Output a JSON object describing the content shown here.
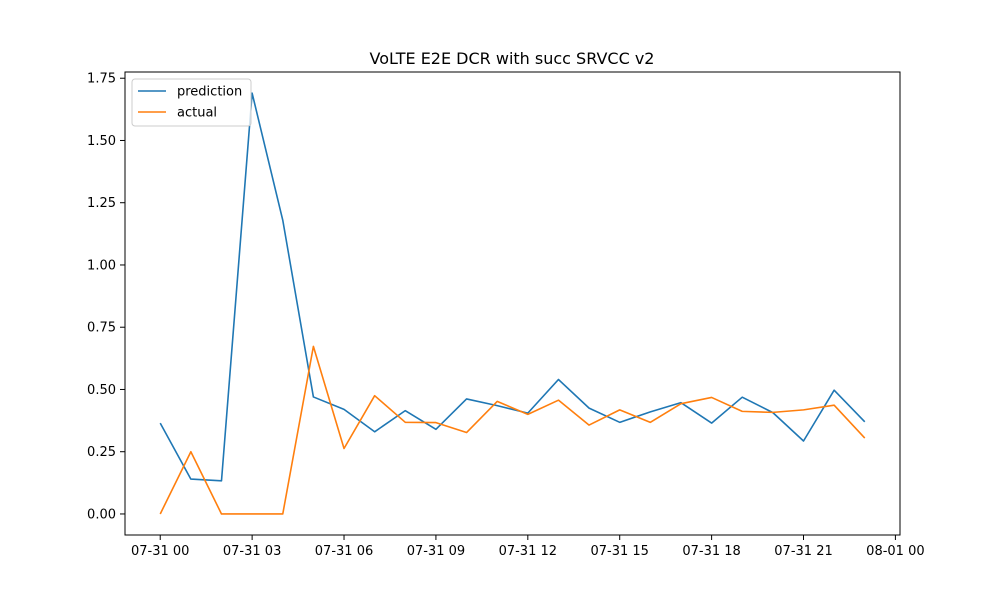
{
  "chart_data": {
    "type": "line",
    "title": "VoLTE E2E DCR with succ SRVCC v2",
    "xlabel": "",
    "ylabel": "",
    "x": [
      "07-31 00:00",
      "07-31 01:00",
      "07-31 02:00",
      "07-31 03:00",
      "07-31 04:00",
      "07-31 05:00",
      "07-31 06:00",
      "07-31 07:00",
      "07-31 08:00",
      "07-31 09:00",
      "07-31 10:00",
      "07-31 11:00",
      "07-31 12:00",
      "07-31 13:00",
      "07-31 14:00",
      "07-31 15:00",
      "07-31 16:00",
      "07-31 17:00",
      "07-31 18:00",
      "07-31 19:00",
      "07-31 20:00",
      "07-31 21:00",
      "07-31 22:00",
      "07-31 23:00"
    ],
    "series": [
      {
        "name": "prediction",
        "color": "#1f77b4",
        "values": [
          0.365,
          0.14,
          0.133,
          1.69,
          1.18,
          0.47,
          0.42,
          0.33,
          0.415,
          0.34,
          0.462,
          0.435,
          0.405,
          0.54,
          0.425,
          0.368,
          0.41,
          0.447,
          0.365,
          0.469,
          0.407,
          0.293,
          0.497,
          0.37
        ]
      },
      {
        "name": "actual",
        "color": "#ff7f0e",
        "values": [
          0.0,
          0.25,
          0.0,
          0.0,
          0.0,
          0.673,
          0.263,
          0.475,
          0.368,
          0.367,
          0.327,
          0.452,
          0.4,
          0.457,
          0.357,
          0.418,
          0.368,
          0.443,
          0.468,
          0.412,
          0.408,
          0.418,
          0.437,
          0.305
        ]
      }
    ],
    "xticks": [
      "07-31 00",
      "07-31 03",
      "07-31 06",
      "07-31 09",
      "07-31 12",
      "07-31 15",
      "07-31 18",
      "07-31 21",
      "08-01 00"
    ],
    "xtick_hours": [
      0,
      3,
      6,
      9,
      12,
      15,
      18,
      21,
      24
    ],
    "yticks": [
      "0.00",
      "0.25",
      "0.50",
      "0.75",
      "1.00",
      "1.25",
      "1.50",
      "1.75"
    ],
    "ytick_values": [
      0,
      0.25,
      0.5,
      0.75,
      1.0,
      1.25,
      1.5,
      1.75
    ],
    "xlim_hours": [
      -1.15,
      24.15
    ],
    "ylim": [
      -0.0845,
      1.775
    ],
    "legend": {
      "position": "top-left"
    },
    "grid": false
  }
}
